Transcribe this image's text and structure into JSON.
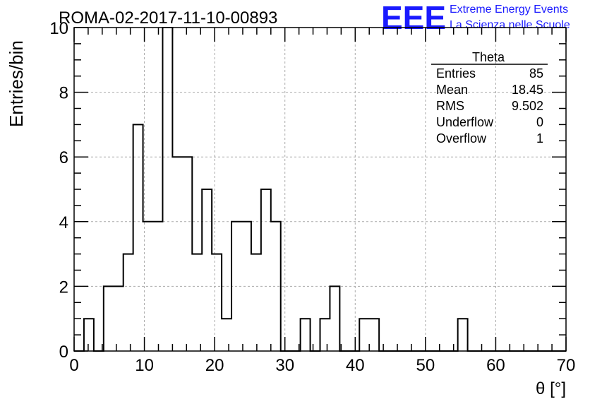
{
  "header": {
    "title": "ROMA-02-2017-11-10-00893",
    "logo_text": "EEE",
    "logo_line1": "Extreme Energy Events",
    "logo_line2": "La Scienza nelle Scuole",
    "logo_color": "#1a1aff"
  },
  "stats": {
    "name": "Theta",
    "rows": [
      {
        "label": "Entries",
        "value": "85"
      },
      {
        "label": "Mean",
        "value": "18.45"
      },
      {
        "label": "RMS",
        "value": "9.502"
      },
      {
        "label": "Underflow",
        "value": "0"
      },
      {
        "label": "Overflow",
        "value": "1"
      }
    ]
  },
  "chart_data": {
    "type": "bar",
    "title": "ROMA-02-2017-11-10-00893",
    "xlabel": "θ [°]",
    "ylabel": "Entries/bin",
    "xlim": [
      0,
      70
    ],
    "ylim": [
      0,
      10
    ],
    "grid": true,
    "xticks": [
      0,
      10,
      20,
      30,
      40,
      50,
      60,
      70
    ],
    "yticks": [
      0,
      2,
      4,
      6,
      8,
      10
    ],
    "bin_width": 1.4,
    "series": [
      {
        "values": [
          0,
          1,
          0,
          2,
          2,
          3,
          7,
          4,
          4,
          10,
          6,
          6,
          3,
          5,
          3,
          1,
          4,
          4,
          3,
          5,
          4,
          0,
          0,
          1,
          0,
          1,
          2,
          0,
          0,
          1,
          1,
          0,
          0,
          0,
          0,
          0,
          0,
          0,
          0,
          1,
          0,
          0,
          0,
          0,
          0,
          0,
          0,
          0,
          0,
          0
        ]
      }
    ]
  }
}
